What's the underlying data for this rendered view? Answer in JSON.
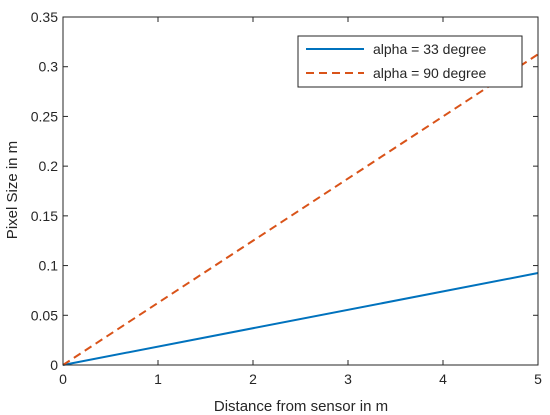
{
  "chart_data": {
    "type": "line",
    "title": "",
    "xlabel": "Distance from sensor in m",
    "ylabel": "Pixel Size in m",
    "xlim": [
      0,
      5
    ],
    "ylim": [
      0,
      0.35
    ],
    "xticks": [
      0,
      1,
      2,
      3,
      4,
      5
    ],
    "xtick_labels": [
      "0",
      "1",
      "2",
      "3",
      "4",
      "5"
    ],
    "yticks": [
      0,
      0.05,
      0.1,
      0.15,
      0.2,
      0.25,
      0.3,
      0.35
    ],
    "ytick_labels": [
      "0",
      "0.05",
      "0.1",
      "0.15",
      "0.2",
      "0.25",
      "0.3",
      "0.35"
    ],
    "grid": false,
    "legend_position": "top-right",
    "series": [
      {
        "name": "alpha = 33 degree",
        "x": [
          0,
          5
        ],
        "y": [
          0,
          0.0925
        ],
        "color": "#0072BD",
        "style": "solid"
      },
      {
        "name": "alpha = 90 degree",
        "x": [
          0,
          5
        ],
        "y": [
          0,
          0.3125
        ],
        "color": "#D95319",
        "style": "dashed"
      }
    ]
  }
}
